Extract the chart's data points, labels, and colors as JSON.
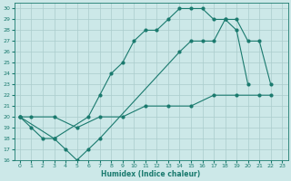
{
  "xlabel": "Humidex (Indice chaleur)",
  "bg_color": "#cce8e8",
  "grid_color": "#aacccc",
  "line_color": "#1a7a6e",
  "xlim": [
    -0.5,
    23.5
  ],
  "ylim": [
    16,
    30.5
  ],
  "xticks": [
    0,
    1,
    2,
    3,
    4,
    5,
    6,
    7,
    8,
    9,
    10,
    11,
    12,
    13,
    14,
    15,
    16,
    17,
    18,
    19,
    20,
    21,
    22,
    23
  ],
  "yticks": [
    16,
    17,
    18,
    19,
    20,
    21,
    22,
    23,
    24,
    25,
    26,
    27,
    28,
    29,
    30
  ],
  "line1_x": [
    0,
    1,
    2,
    3,
    6,
    7,
    8,
    9,
    10,
    11,
    12,
    13,
    14,
    15,
    16,
    17,
    18,
    19,
    20
  ],
  "line1_y": [
    20,
    19,
    18,
    18,
    20,
    22,
    24,
    25,
    27,
    28,
    28,
    29,
    30,
    30,
    30,
    29,
    29,
    28,
    23
  ],
  "line2_x": [
    0,
    3,
    4,
    5,
    6,
    7,
    14,
    15,
    16,
    17,
    18,
    19,
    20,
    21,
    22
  ],
  "line2_y": [
    20,
    18,
    17,
    16,
    17,
    18,
    26,
    27,
    27,
    27,
    29,
    29,
    27,
    27,
    23
  ],
  "line3_x": [
    0,
    1,
    3,
    5,
    7,
    9,
    11,
    13,
    15,
    17,
    19,
    21,
    22
  ],
  "line3_y": [
    20,
    20,
    20,
    19,
    20,
    20,
    21,
    21,
    21,
    22,
    22,
    22,
    22
  ]
}
